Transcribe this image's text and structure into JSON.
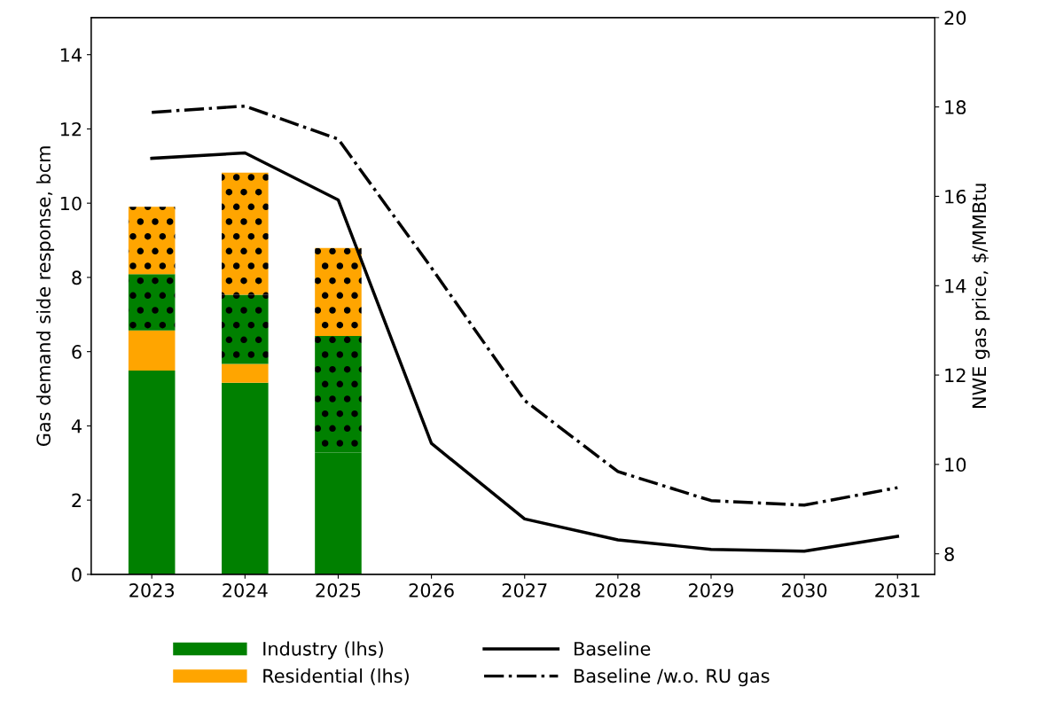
{
  "chart_data": {
    "type": "bar",
    "stacked": true,
    "ylabel": "Gas demand side response, bcm",
    "y2label": "NWE gas price, $/MMBtu",
    "categories": [
      "2023",
      "2024",
      "2025",
      "2026",
      "2027",
      "2028",
      "2029",
      "2030",
      "2031"
    ],
    "ylim": [
      0,
      15
    ],
    "yticks": [
      0,
      2,
      4,
      6,
      8,
      10,
      12,
      14
    ],
    "y2lim": [
      7.54,
      20
    ],
    "y2ticks": [
      8,
      10,
      12,
      14,
      16,
      18,
      20
    ],
    "legend": "bottom",
    "grid": false,
    "series": [
      {
        "name": "Industry (lhs)",
        "color": "#008000",
        "values": [
          5.49,
          5.16,
          3.28,
          null,
          null,
          null,
          null,
          null,
          null
        ]
      },
      {
        "name": "Residential (lhs)",
        "color": "#ffa500",
        "values": [
          1.08,
          0.51,
          0,
          null,
          null,
          null,
          null,
          null,
          null
        ]
      },
      {
        "color": "#008000",
        "values": [
          1.52,
          1.86,
          3.14,
          null,
          null,
          null,
          null,
          null,
          null
        ]
      },
      {
        "color": "#ffa500",
        "values": [
          1.81,
          3.29,
          2.37,
          null,
          null,
          null,
          null,
          null,
          null
        ]
      },
      {
        "name": "Baseline",
        "type": "line",
        "axis": "y2",
        "color": "#000000",
        "line_style": "solid",
        "values": [
          16.85,
          16.97,
          15.92,
          10.47,
          8.78,
          8.31,
          8.1,
          8.06,
          8.39
        ]
      },
      {
        "name": "Baseline /w.o. RU gas",
        "type": "line",
        "axis": "y2",
        "color": "#000000",
        "line_style": "dashdot",
        "values": [
          17.88,
          18.02,
          17.28,
          14.4,
          11.43,
          9.84,
          9.19,
          9.09,
          9.48
        ]
      }
    ]
  }
}
